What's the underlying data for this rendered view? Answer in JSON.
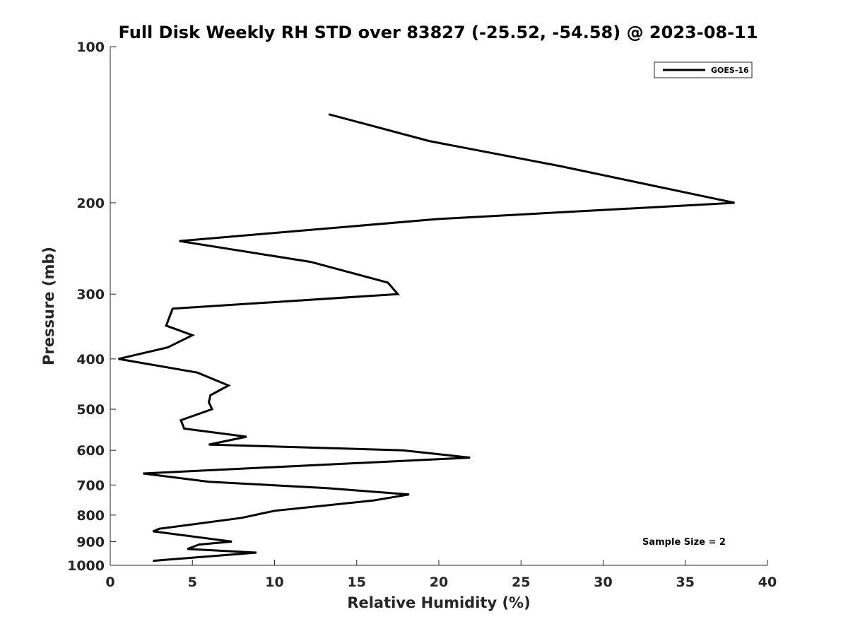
{
  "chart_data": {
    "type": "line",
    "title": "Full Disk Weekly RH STD over 83827 (-25.52, -54.58) @ 2023-08-11",
    "xlabel": "Relative Humidity (%)",
    "ylabel": "Pressure (mb)",
    "xlim": [
      0,
      40
    ],
    "ylim": [
      100,
      1000
    ],
    "y_scale": "log",
    "y_reversed": true,
    "x_ticks": [
      0,
      5,
      10,
      15,
      20,
      25,
      30,
      35,
      40
    ],
    "y_ticks": [
      100,
      200,
      300,
      400,
      500,
      600,
      700,
      800,
      900,
      1000
    ],
    "grid": false,
    "legend": {
      "position": "top-right"
    },
    "series": [
      {
        "name": "GOES-16",
        "color": "#000000",
        "points": [
          {
            "x": 13.3,
            "p": 135
          },
          {
            "x": 19.4,
            "p": 152
          },
          {
            "x": 27.4,
            "p": 170
          },
          {
            "x": 38.0,
            "p": 200
          },
          {
            "x": 19.9,
            "p": 215
          },
          {
            "x": 4.2,
            "p": 237
          },
          {
            "x": 12.2,
            "p": 260
          },
          {
            "x": 16.9,
            "p": 285
          },
          {
            "x": 17.5,
            "p": 300
          },
          {
            "x": 3.8,
            "p": 320
          },
          {
            "x": 3.4,
            "p": 345
          },
          {
            "x": 5.0,
            "p": 360
          },
          {
            "x": 3.5,
            "p": 380
          },
          {
            "x": 0.5,
            "p": 400
          },
          {
            "x": 5.3,
            "p": 425
          },
          {
            "x": 7.2,
            "p": 450
          },
          {
            "x": 6.1,
            "p": 470
          },
          {
            "x": 6.0,
            "p": 485
          },
          {
            "x": 6.2,
            "p": 500
          },
          {
            "x": 4.3,
            "p": 525
          },
          {
            "x": 4.5,
            "p": 545
          },
          {
            "x": 8.3,
            "p": 565
          },
          {
            "x": 6.0,
            "p": 585
          },
          {
            "x": 17.8,
            "p": 600
          },
          {
            "x": 21.9,
            "p": 620
          },
          {
            "x": 2.0,
            "p": 665
          },
          {
            "x": 6.0,
            "p": 690
          },
          {
            "x": 13.2,
            "p": 710
          },
          {
            "x": 18.2,
            "p": 730
          },
          {
            "x": 16.0,
            "p": 750
          },
          {
            "x": 10.0,
            "p": 785
          },
          {
            "x": 8.0,
            "p": 810
          },
          {
            "x": 3.0,
            "p": 850
          },
          {
            "x": 2.6,
            "p": 860
          },
          {
            "x": 7.4,
            "p": 900
          },
          {
            "x": 5.4,
            "p": 912
          },
          {
            "x": 4.7,
            "p": 930
          },
          {
            "x": 8.9,
            "p": 945
          },
          {
            "x": 2.6,
            "p": 980
          }
        ]
      }
    ],
    "annotations": [
      "Sample Size = 2"
    ]
  }
}
